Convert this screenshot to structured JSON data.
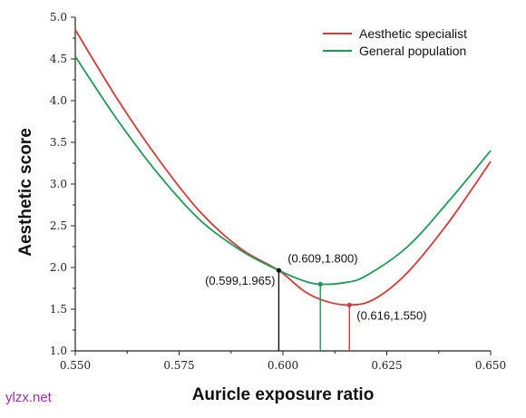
{
  "chart_data": {
    "type": "line",
    "xlabel": "Auricle exposure ratio",
    "ylabel": "Aesthetic score",
    "xlim": [
      0.55,
      0.65
    ],
    "ylim": [
      1.0,
      5.0
    ],
    "x_ticks": [
      "0.550",
      "0.575",
      "0.600",
      "0.625",
      "0.650"
    ],
    "y_ticks": [
      "1.0",
      "1.5",
      "2.0",
      "2.5",
      "3.0",
      "3.5",
      "4.0",
      "4.5",
      "5.0"
    ],
    "grid": false,
    "legend": "top-right",
    "series": [
      {
        "name": "Aesthetic specialist",
        "color": "#d23a3a",
        "x": [
          0.55,
          0.56,
          0.57,
          0.58,
          0.59,
          0.599,
          0.605,
          0.61,
          0.616,
          0.622,
          0.63,
          0.64,
          0.65
        ],
        "y": [
          4.85,
          4.03,
          3.3,
          2.67,
          2.22,
          1.965,
          1.72,
          1.6,
          1.55,
          1.62,
          1.94,
          2.55,
          3.27
        ]
      },
      {
        "name": "General population",
        "color": "#1f9a55",
        "x": [
          0.55,
          0.56,
          0.57,
          0.58,
          0.59,
          0.599,
          0.605,
          0.609,
          0.615,
          0.62,
          0.63,
          0.64,
          0.65
        ],
        "y": [
          4.53,
          3.78,
          3.12,
          2.57,
          2.2,
          1.965,
          1.84,
          1.8,
          1.82,
          1.9,
          2.25,
          2.8,
          3.4
        ]
      }
    ],
    "markers": [
      {
        "x": 0.599,
        "y": 1.965,
        "label": "(0.599,1.965)",
        "color": "#111111",
        "label_pos": "left"
      },
      {
        "x": 0.609,
        "y": 1.8,
        "label": "(0.609,1.800)",
        "color": "#1f9a55",
        "label_pos": "above"
      },
      {
        "x": 0.616,
        "y": 1.55,
        "label": "(0.616,1.550)",
        "color": "#d23a3a",
        "label_pos": "right"
      }
    ]
  },
  "watermark": "ylzx.net"
}
